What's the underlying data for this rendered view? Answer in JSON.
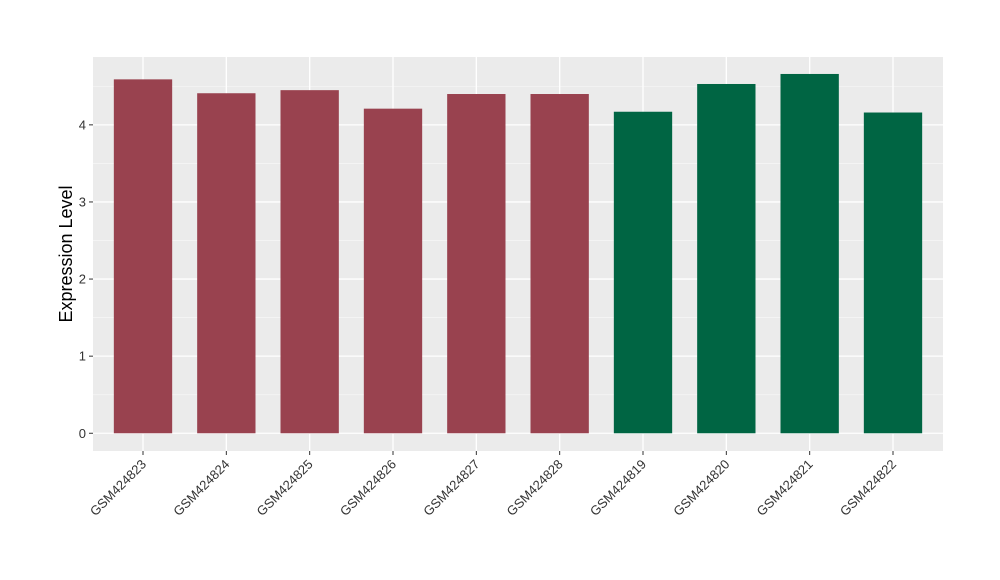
{
  "chart_data": {
    "type": "bar",
    "title": "",
    "xlabel": "",
    "ylabel": "Expression Level",
    "ylim": [
      -0.23,
      4.88
    ],
    "yticks": [
      0,
      1,
      2,
      3,
      4
    ],
    "categories": [
      "GSM424823",
      "GSM424824",
      "GSM424825",
      "GSM424826",
      "GSM424827",
      "GSM424828",
      "GSM424819",
      "GSM424820",
      "GSM424821",
      "GSM424822"
    ],
    "values": [
      4.59,
      4.41,
      4.45,
      4.21,
      4.4,
      4.4,
      4.17,
      4.53,
      4.66,
      4.16
    ],
    "bar_colors": [
      "#99424F",
      "#99424F",
      "#99424F",
      "#99424F",
      "#99424F",
      "#99424F",
      "#006543",
      "#006543",
      "#006543",
      "#006543"
    ],
    "panel_background": "#EBEBEB",
    "grid": true,
    "legend": "none"
  }
}
